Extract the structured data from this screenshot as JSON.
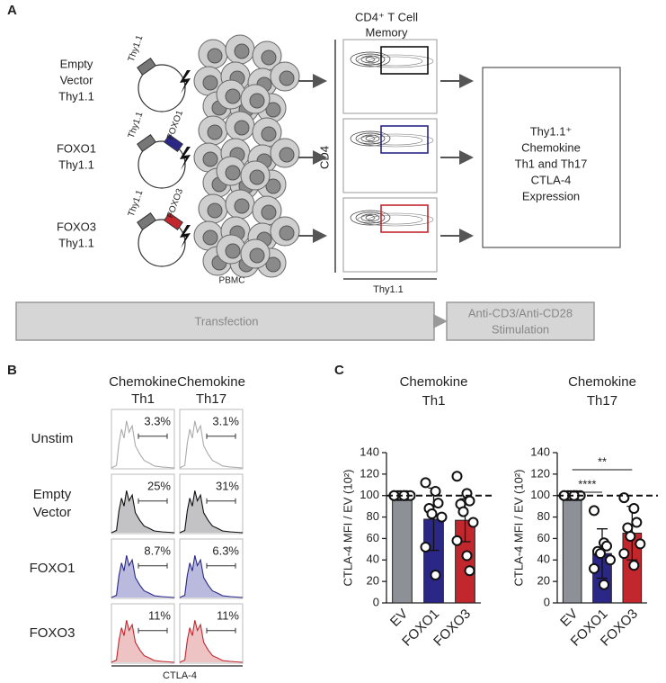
{
  "panel_labels": [
    "A",
    "B",
    "C"
  ],
  "panel_a": {
    "constructs": [
      {
        "label": [
          "Empty",
          "Vector",
          "Thy1.1"
        ],
        "genes": [
          "Thy1.1"
        ]
      },
      {
        "label": [
          "FOXO1",
          "Thy1.1"
        ],
        "genes": [
          "Thy1.1",
          "FOXO1"
        ]
      },
      {
        "label": [
          "FOXO3",
          "Thy1.1"
        ],
        "genes": [
          "Thy1.1",
          "FOXO3"
        ]
      }
    ],
    "cells_label": "PBMC",
    "flow_title": [
      "CD4⁺ T Cell",
      "Memory"
    ],
    "flow_y_label": "CD4",
    "flow_x_label": "Thy1.1",
    "readout": [
      "Thy1.1⁺",
      "Chemokine",
      "Th1 and Th17",
      "CTLA-4",
      "Expression"
    ],
    "step1": "Transfection",
    "step2": [
      "Anti-CD3/Anti-CD28",
      "Stimulation"
    ]
  },
  "panel_b": {
    "columns": [
      [
        "Chemokine",
        "Th1"
      ],
      [
        "Chemokine",
        "Th17"
      ]
    ],
    "rows": [
      [
        "Unstim"
      ],
      [
        "Empty",
        "Vector"
      ],
      [
        "FOXO1"
      ],
      [
        "FOXO3"
      ]
    ],
    "percentages": [
      [
        "3.3%",
        "3.1%"
      ],
      [
        "25%",
        "31%"
      ],
      [
        "8.7%",
        "6.3%"
      ],
      [
        "11%",
        "11%"
      ]
    ],
    "x_label": "CTLA-4"
  },
  "chart_data": [
    {
      "type": "bar",
      "title": [
        "Chemokine",
        "Th1"
      ],
      "y_label": "CTLA-4 MFI / EV (10²)",
      "categories": [
        "EV",
        "FOXO1",
        "FOXO3"
      ],
      "values": [
        100,
        78,
        77
      ],
      "errors": [
        0,
        29,
        20
      ],
      "points": [
        [
          100,
          100,
          100,
          100,
          100,
          100,
          100,
          100
        ],
        [
          112,
          104,
          93,
          88,
          83,
          80,
          52,
          26
        ],
        [
          118,
          102,
          95,
          92,
          85,
          75,
          58,
          44,
          30
        ]
      ],
      "colors": [
        "#8e9097",
        "#2a2787",
        "#c1272d"
      ],
      "ylim": [
        0,
        140
      ],
      "yticks": [
        0,
        20,
        40,
        60,
        80,
        100,
        120,
        140
      ],
      "reference_line": 100,
      "significance": []
    },
    {
      "type": "bar",
      "title": [
        "Chemokine",
        "Th17"
      ],
      "y_label": "CTLA-4 MFI / EV (10²)",
      "categories": [
        "EV",
        "FOXO1",
        "FOXO3"
      ],
      "values": [
        100,
        46,
        65
      ],
      "errors": [
        0,
        23,
        25
      ],
      "points": [
        [
          100,
          100,
          100,
          100,
          100,
          100,
          100,
          100
        ],
        [
          86,
          56,
          53,
          48,
          46,
          40,
          32,
          17
        ],
        [
          98,
          88,
          75,
          70,
          62,
          55,
          46,
          35
        ]
      ],
      "colors": [
        "#8e9097",
        "#2a2787",
        "#c1272d"
      ],
      "ylim": [
        0,
        140
      ],
      "yticks": [
        0,
        20,
        40,
        60,
        80,
        100,
        120,
        140
      ],
      "reference_line": 100,
      "significance": [
        {
          "pair": [
            "EV",
            "FOXO1"
          ],
          "label": "****"
        },
        {
          "pair": [
            "EV",
            "FOXO3"
          ],
          "label": "**"
        }
      ]
    }
  ]
}
